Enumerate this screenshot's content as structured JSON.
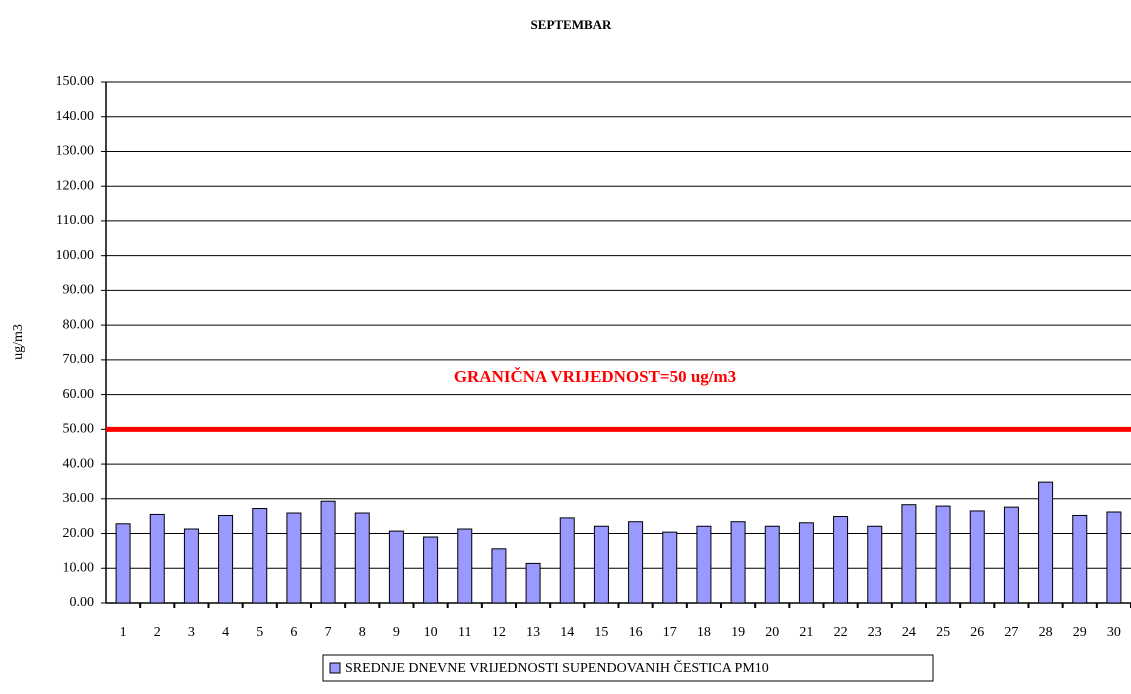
{
  "chart_data": {
    "type": "bar",
    "title": "SEPTEMBAR",
    "ylabel": "ug/m3",
    "categories": [
      "1",
      "2",
      "3",
      "4",
      "5",
      "6",
      "7",
      "8",
      "9",
      "10",
      "11",
      "12",
      "13",
      "14",
      "15",
      "16",
      "17",
      "18",
      "19",
      "20",
      "21",
      "22",
      "23",
      "24",
      "25",
      "26",
      "27",
      "28",
      "29",
      "30"
    ],
    "series": [
      {
        "name": "SREDNJE DNEVNE VRIJEDNOSTI SUPENDOVANIH ČESTICA PM10",
        "color": "#9999ff",
        "values": [
          22.8,
          25.5,
          21.3,
          25.2,
          27.2,
          25.9,
          29.3,
          25.9,
          20.7,
          19.0,
          21.3,
          15.6,
          11.4,
          24.5,
          22.1,
          23.4,
          20.4,
          22.1,
          23.4,
          22.1,
          23.1,
          24.9,
          22.1,
          28.3,
          27.9,
          26.5,
          27.6,
          34.8,
          25.2,
          26.2
        ]
      }
    ],
    "ylim": [
      0,
      150
    ],
    "yticks": [
      {
        "value": 0,
        "label": "0.00"
      },
      {
        "value": 10,
        "label": "10.00"
      },
      {
        "value": 20,
        "label": "20.00"
      },
      {
        "value": 30,
        "label": "30.00"
      },
      {
        "value": 40,
        "label": "40.00"
      },
      {
        "value": 50,
        "label": "50.00"
      },
      {
        "value": 60,
        "label": "60.00"
      },
      {
        "value": 70,
        "label": "70.00"
      },
      {
        "value": 80,
        "label": "80.00"
      },
      {
        "value": 90,
        "label": "90.00"
      },
      {
        "value": 100,
        "label": "100.00"
      },
      {
        "value": 110,
        "label": "110.00"
      },
      {
        "value": 120,
        "label": "120.00"
      },
      {
        "value": 130,
        "label": "130.00"
      },
      {
        "value": 140,
        "label": "140.00"
      },
      {
        "value": 150,
        "label": "150.00"
      }
    ],
    "grid": true,
    "threshold": 50,
    "threshold_color": "#ff0000",
    "annotation": "GRANIČNA VRIJEDNOST=50 ug/m3",
    "legend": "bottom"
  }
}
